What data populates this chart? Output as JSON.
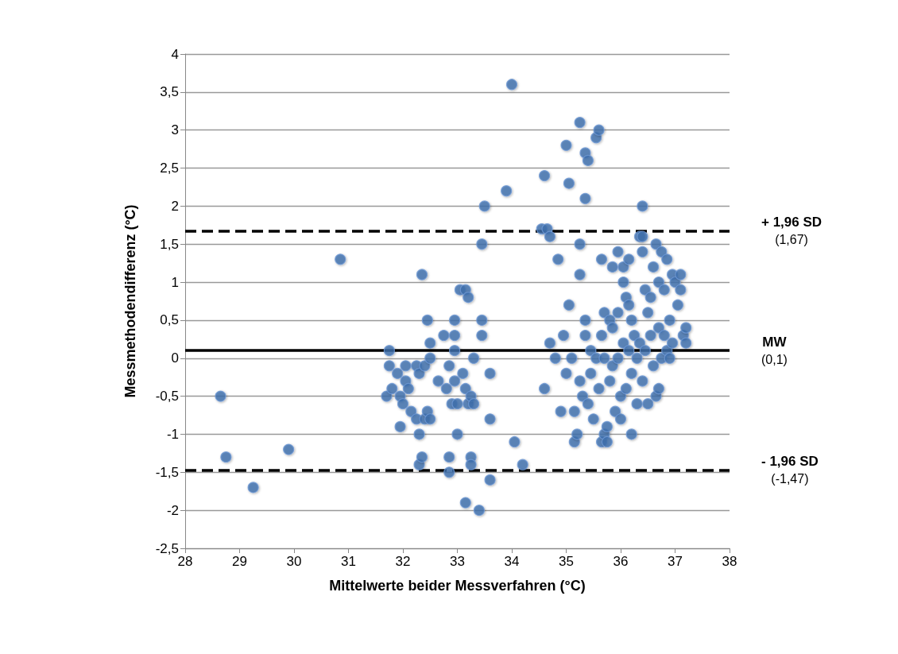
{
  "chart_data": {
    "type": "scatter",
    "xlabel": "Mittelwerte beider Messverfahren (°C)",
    "ylabel": "Messmethodendifferenz (°C)",
    "xlim": [
      28,
      38
    ],
    "xticks": [
      28,
      29,
      30,
      31,
      32,
      33,
      34,
      35,
      36,
      37,
      38
    ],
    "ylim": [
      -2.5,
      4
    ],
    "yticks": [
      {
        "value": -2.5,
        "label": "-2,5"
      },
      -2,
      {
        "value": -1.5,
        "label": "-1,5"
      },
      -1,
      {
        "value": -0.5,
        "label": "-0,5"
      },
      0,
      {
        "value": 0.5,
        "label": "0,5"
      },
      1,
      {
        "value": 1.5,
        "label": "1,5"
      },
      2,
      {
        "value": 2.5,
        "label": "2,5"
      },
      3,
      {
        "value": 3.5,
        "label": "3,5"
      },
      4
    ],
    "grid": "y",
    "marker": "circle",
    "ref_lines": [
      {
        "axis": "y",
        "value": 1.67,
        "label": "+ 1,96 SD\n(1,67)",
        "color": "#000000",
        "line_style": "dashed"
      },
      {
        "axis": "y",
        "value": 0.1,
        "label": "MW\n(0,1)",
        "color": "#000000",
        "line_style": "solid"
      },
      {
        "axis": "y",
        "value": -1.47,
        "label": "- 1,96 SD\n(-1,47)",
        "color": "#000000",
        "line_style": "dashed"
      }
    ],
    "series": [
      {
        "color": "#3f6fae",
        "x": [
          28.65,
          28.75,
          29.25,
          29.9,
          30.85,
          31.7,
          31.75,
          31.75,
          31.8,
          31.9,
          31.95,
          31.95,
          32.0,
          32.05,
          32.05,
          32.1,
          32.15,
          32.25,
          32.25,
          32.3,
          32.3,
          32.3,
          32.35,
          32.35,
          32.4,
          32.4,
          32.45,
          32.45,
          32.5,
          32.5,
          32.5,
          32.65,
          32.75,
          32.8,
          32.85,
          32.85,
          32.85,
          32.9,
          32.95,
          32.95,
          32.95,
          32.95,
          33.0,
          33.0,
          33.05,
          33.1,
          33.15,
          33.15,
          33.15,
          33.2,
          33.2,
          33.25,
          33.25,
          33.25,
          33.3,
          33.3,
          33.4,
          33.45,
          33.45,
          33.45,
          33.5,
          33.6,
          33.6,
          33.6,
          33.9,
          34.0,
          34.05,
          34.2,
          34.55,
          34.6,
          34.6,
          34.65,
          34.7,
          34.7,
          34.8,
          34.85,
          34.9,
          34.95,
          35.0,
          35.0,
          35.05,
          35.05,
          35.1,
          35.15,
          35.15,
          35.2,
          35.25,
          35.25,
          35.25,
          35.25,
          35.3,
          35.35,
          35.35,
          35.35,
          35.35,
          35.4,
          35.4,
          35.45,
          35.45,
          35.5,
          35.55,
          35.55,
          35.6,
          35.6,
          35.65,
          35.65,
          35.65,
          35.7,
          35.7,
          35.7,
          35.75,
          35.75,
          35.8,
          35.8,
          35.85,
          35.85,
          35.85,
          35.9,
          35.95,
          35.95,
          35.95,
          36.0,
          36.0,
          36.05,
          36.05,
          36.05,
          36.1,
          36.1,
          36.15,
          36.15,
          36.15,
          36.2,
          36.2,
          36.2,
          36.25,
          36.3,
          36.3,
          36.35,
          36.35,
          36.4,
          36.4,
          36.4,
          36.4,
          36.45,
          36.45,
          36.5,
          36.5,
          36.55,
          36.55,
          36.6,
          36.6,
          36.65,
          36.65,
          36.7,
          36.7,
          36.7,
          36.75,
          36.75,
          36.8,
          36.8,
          36.85,
          36.85,
          36.9,
          36.9,
          36.95,
          36.95,
          37.0,
          37.05,
          37.1,
          37.1,
          37.15,
          37.2,
          37.2
        ],
        "values": [
          -0.5,
          -1.3,
          -1.7,
          -1.2,
          1.3,
          -0.5,
          0.1,
          -0.1,
          -0.4,
          -0.2,
          -0.5,
          -0.9,
          -0.6,
          -0.1,
          -0.3,
          -0.4,
          -0.7,
          -0.8,
          -0.1,
          -1.0,
          -1.4,
          -0.2,
          1.1,
          -1.3,
          -0.8,
          -0.1,
          0.5,
          -0.7,
          0.2,
          0.0,
          -0.8,
          -0.3,
          0.3,
          -0.4,
          -0.1,
          -1.3,
          -1.5,
          -0.6,
          0.5,
          0.3,
          0.1,
          -0.3,
          -0.6,
          -1.0,
          0.9,
          -0.2,
          0.9,
          -0.4,
          -1.9,
          0.8,
          -0.6,
          -0.5,
          -1.3,
          -1.4,
          0.0,
          -0.6,
          -2.0,
          1.5,
          0.5,
          0.3,
          2.0,
          -0.2,
          -0.8,
          -1.6,
          2.2,
          3.6,
          -1.1,
          -1.4,
          1.7,
          2.4,
          -0.4,
          1.7,
          1.6,
          0.2,
          0.0,
          1.3,
          -0.7,
          0.3,
          2.8,
          -0.2,
          2.3,
          0.7,
          0.0,
          -0.7,
          -1.1,
          -1.0,
          3.1,
          1.5,
          1.1,
          -0.3,
          -0.5,
          2.7,
          2.1,
          0.5,
          0.3,
          2.6,
          -0.6,
          0.1,
          -0.2,
          -0.8,
          2.9,
          0.0,
          3.0,
          -0.4,
          1.3,
          0.3,
          -1.1,
          0.6,
          0.0,
          -1.0,
          -0.9,
          -1.1,
          0.5,
          -0.3,
          1.2,
          0.4,
          -0.1,
          -0.7,
          1.4,
          0.6,
          0.0,
          -0.5,
          -0.8,
          1.2,
          1.0,
          0.2,
          -0.4,
          0.8,
          1.3,
          0.7,
          0.1,
          -1.0,
          0.5,
          -0.2,
          0.3,
          0.0,
          -0.6,
          1.6,
          0.2,
          2.0,
          1.6,
          1.4,
          -0.3,
          0.9,
          0.1,
          0.6,
          -0.6,
          0.8,
          0.3,
          1.2,
          -0.1,
          1.5,
          -0.5,
          1.0,
          0.4,
          -0.4,
          1.4,
          0.0,
          0.9,
          0.3,
          1.3,
          0.1,
          0.5,
          0.0,
          1.1,
          0.2,
          1.0,
          0.7,
          1.1,
          0.9,
          0.3,
          0.4,
          0.2
        ]
      }
    ]
  }
}
